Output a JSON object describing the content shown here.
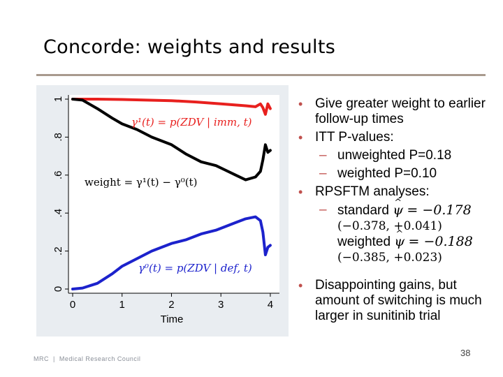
{
  "slide": {
    "title": "Concorde: weights and results",
    "page_number": "38",
    "footer_org_short": "MRC",
    "footer_org_name": "Medical Research Council"
  },
  "bullets": {
    "b1": "Give greater weight to earlier follow-up times",
    "b2": "ITT P-values:",
    "b2_sub1": "unweighted P=0.18",
    "b2_sub2": "weighted P=0.10",
    "b3": "RPSFTM analyses:",
    "b3_sub_standard_label": "standard",
    "psi": "ψ",
    "standard_est": "= −0.178",
    "standard_ci": "(−0.378, +0.041)",
    "b3_sub_weighted_label": "weighted",
    "weighted_est": "= −0.188",
    "weighted_ci": "(−0.385, +0.023)",
    "b4": "Disappointing gains, but amount of switching is much larger in sunitinib trial"
  },
  "chart_data": {
    "type": "line",
    "xlabel": "Time",
    "ylabel": "",
    "xlim": [
      0,
      4.1
    ],
    "ylim": [
      0,
      1
    ],
    "xticks": [
      "0",
      "1",
      "2",
      "3",
      "4"
    ],
    "yticks": [
      "0",
      ".2",
      ".4",
      ".6",
      ".8",
      "1"
    ],
    "annotations": {
      "gamma1": "γ¹(t) = p(ZDV | imm, t)",
      "weight": "weight = γ¹(t) − γ⁰(t)",
      "gamma0": "γ⁰(t) = p(ZDV | def, t)"
    },
    "series": [
      {
        "name": "gamma1",
        "color": "#e8201e",
        "x": [
          0,
          0.5,
          1.0,
          1.5,
          2.0,
          2.5,
          3.0,
          3.5,
          3.7,
          3.8,
          3.85,
          3.9,
          3.95,
          4.0
        ],
        "y": [
          1.0,
          1.0,
          0.998,
          0.995,
          0.992,
          0.985,
          0.975,
          0.965,
          0.96,
          0.975,
          0.955,
          0.92,
          0.975,
          0.95
        ]
      },
      {
        "name": "weight",
        "color": "#000000",
        "x": [
          0,
          0.2,
          0.5,
          0.8,
          1.0,
          1.3,
          1.6,
          2.0,
          2.3,
          2.6,
          2.9,
          3.1,
          3.3,
          3.5,
          3.7,
          3.8,
          3.85,
          3.9,
          3.95,
          4.0
        ],
        "y": [
          1.0,
          0.995,
          0.95,
          0.9,
          0.87,
          0.84,
          0.8,
          0.76,
          0.71,
          0.67,
          0.65,
          0.625,
          0.6,
          0.575,
          0.59,
          0.62,
          0.68,
          0.76,
          0.72,
          0.73
        ]
      },
      {
        "name": "gamma0",
        "color": "#1c22cc",
        "x": [
          0,
          0.2,
          0.5,
          0.8,
          1.0,
          1.3,
          1.6,
          2.0,
          2.3,
          2.6,
          2.9,
          3.1,
          3.3,
          3.5,
          3.7,
          3.8,
          3.85,
          3.9,
          3.95,
          4.0
        ],
        "y": [
          0.0,
          0.005,
          0.03,
          0.08,
          0.12,
          0.16,
          0.2,
          0.24,
          0.26,
          0.29,
          0.31,
          0.33,
          0.35,
          0.37,
          0.38,
          0.36,
          0.3,
          0.18,
          0.22,
          0.23
        ]
      }
    ]
  }
}
